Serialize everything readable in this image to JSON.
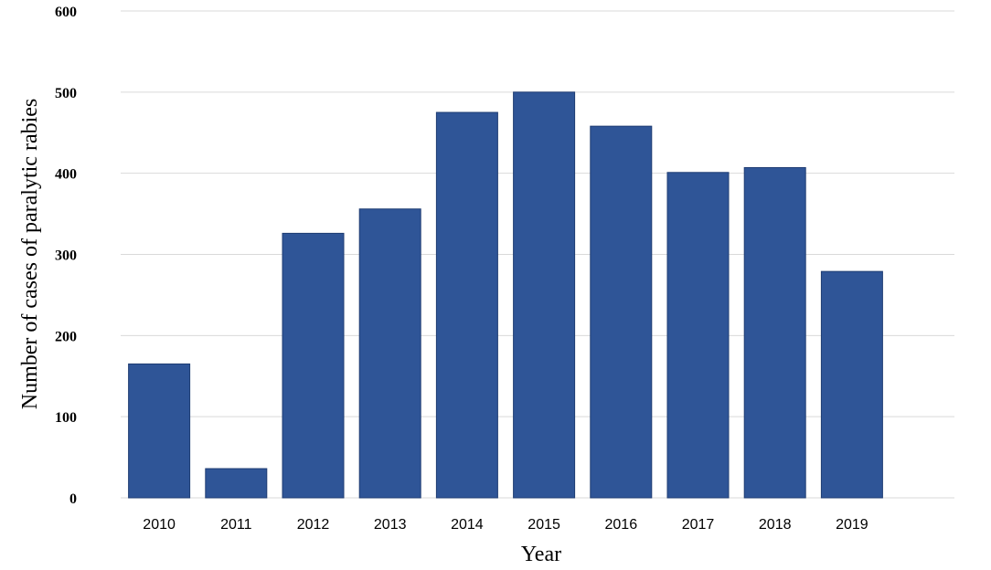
{
  "chart_data": {
    "type": "bar",
    "title": "",
    "xlabel": "Year",
    "ylabel": "Number of cases of paralytic rabies",
    "categories": [
      "2010",
      "2011",
      "2012",
      "2013",
      "2014",
      "2015",
      "2016",
      "2017",
      "2018",
      "2019"
    ],
    "values": [
      165,
      36,
      326,
      356,
      475,
      500,
      458,
      401,
      407,
      279
    ],
    "ylim": [
      0,
      600
    ],
    "yticks": [
      "0",
      "100",
      "200",
      "300",
      "400",
      "500",
      "600"
    ],
    "grid": true,
    "legend": "none",
    "bar_color": "#2f5597",
    "bar_edge_color": "#1f3d73"
  }
}
